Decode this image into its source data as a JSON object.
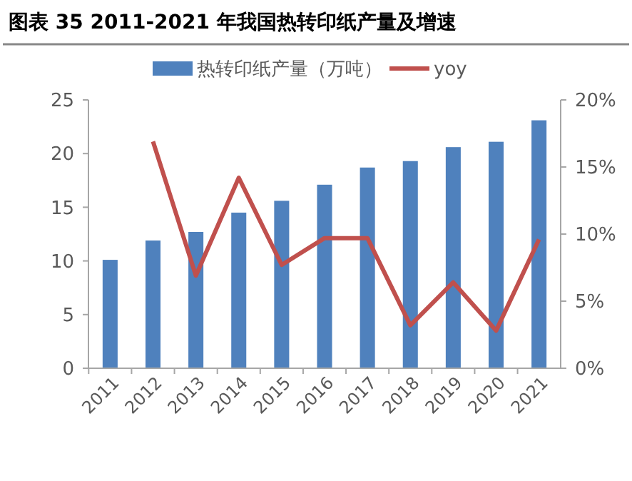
{
  "chart_data": {
    "type": "bar",
    "title": "图表 35 2011-2021 年我国热转印纸产量及增速",
    "categories": [
      "2011",
      "2012",
      "2013",
      "2014",
      "2015",
      "2016",
      "2017",
      "2018",
      "2019",
      "2020",
      "2021"
    ],
    "series": [
      {
        "name": "热转印纸产量（万吨）",
        "color": "#4f81bd",
        "values": [
          10.1,
          11.9,
          12.7,
          14.5,
          15.6,
          17.1,
          18.7,
          19.3,
          20.6,
          21.1,
          23.1
        ]
      },
      {
        "name": "yoy",
        "type": "line",
        "axis": "y2",
        "color": "#c0504d",
        "values": [
          null,
          16.9,
          6.9,
          14.2,
          7.7,
          9.7,
          9.7,
          3.2,
          6.4,
          2.8,
          9.6
        ]
      }
    ],
    "ylim": [
      0,
      25
    ],
    "yticks": [
      0,
      5,
      10,
      15,
      20,
      25
    ],
    "y2lim": [
      0,
      20
    ],
    "y2ticks": [
      {
        "value": 0,
        "label": "0%"
      },
      {
        "value": 5,
        "label": "5%"
      },
      {
        "value": 10,
        "label": "10%"
      },
      {
        "value": 15,
        "label": "15%"
      },
      {
        "value": 20,
        "label": "20%"
      }
    ],
    "legend": "top",
    "grid": false,
    "marker": "none"
  }
}
